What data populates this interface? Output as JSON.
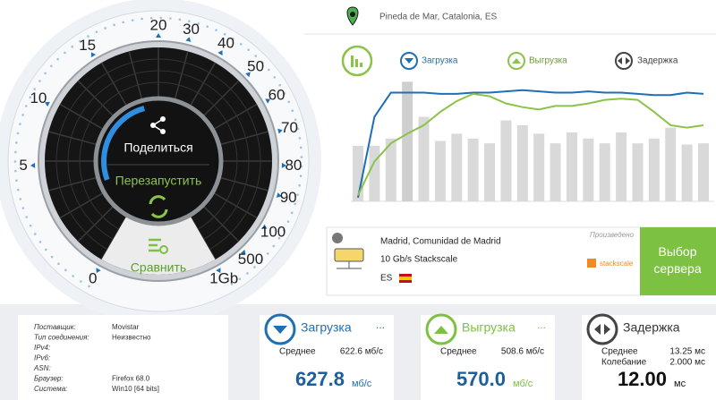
{
  "location": "Pineda de Mar, Catalonia, ES",
  "gauge": {
    "scale": [
      "0",
      "5",
      "10",
      "15",
      "20",
      "30",
      "40",
      "50",
      "60",
      "70",
      "80",
      "90",
      "100",
      "500",
      "1Gb"
    ],
    "share": "Поделиться",
    "restart": "Перезапустить",
    "compare": "Сравнить"
  },
  "graph": {
    "type": "line",
    "ylim": [
      0,
      100
    ],
    "bars": [
      46,
      46,
      52,
      99,
      70,
      50,
      56,
      52,
      48,
      67,
      63,
      56,
      48,
      57,
      52,
      48,
      57,
      48,
      52,
      61,
      47,
      48
    ],
    "series": [
      {
        "name": "Загрузка",
        "color": "#1f6fb5",
        "values": [
          3,
          70,
          90,
          90,
          90,
          89,
          89,
          90,
          90,
          91,
          92,
          91,
          90,
          90,
          91,
          90,
          90,
          89,
          88,
          88,
          90,
          89
        ]
      },
      {
        "name": "Выгрузка",
        "color": "#8bc34a",
        "values": [
          5,
          33,
          48,
          56,
          63,
          74,
          83,
          89,
          87,
          81,
          78,
          76,
          79,
          79,
          81,
          84,
          85,
          84,
          74,
          63,
          61,
          63
        ]
      }
    ],
    "latency_legend": "Задержка"
  },
  "server": {
    "city": "Madrid, Comunidad de Madrid",
    "provider": "10 Gb/s Stackscale",
    "country": "ES",
    "made_by": "Произведено",
    "brand": "stackscale",
    "select": "Выбор сервера"
  },
  "info": [
    [
      "Поставщик:",
      "Movistar"
    ],
    [
      "Тип соединения:",
      "Неизвестно"
    ],
    [
      "IPv4:"
    ],
    [
      "IPv6:"
    ],
    [
      "ASN:"
    ],
    [
      "Браузер:",
      "Firefox 68.0"
    ],
    [
      "Система:",
      "Win10 [64 bits]"
    ]
  ],
  "cards": {
    "download": {
      "title": "Загрузка",
      "more": "...",
      "avg_label": "Среднее",
      "avg": "622.6 мб/с",
      "value": "627.8",
      "unit": "мб/с"
    },
    "upload": {
      "title": "Выгрузка",
      "more": "...",
      "avg_label": "Среднее",
      "avg": "508.6 мб/с",
      "value": "570.0",
      "unit": "мб/с"
    },
    "latency": {
      "title": "Задержка",
      "avg_label": "Среднее",
      "avg": "13.25 мс",
      "jitter_label": "Колебание",
      "jitter": "2.000 мс",
      "value": "12.00",
      "unit": "мс"
    }
  }
}
